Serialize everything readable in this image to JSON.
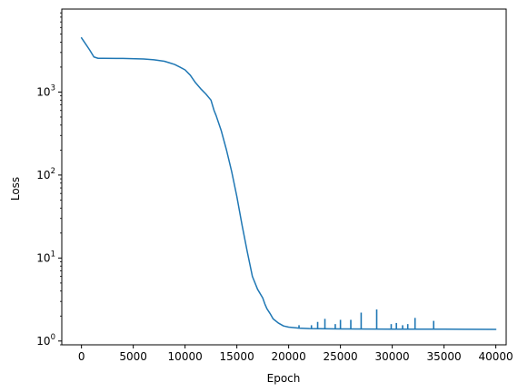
{
  "chart_data": {
    "type": "line",
    "title": "",
    "xlabel": "Epoch",
    "ylabel": "Loss",
    "yscale": "log",
    "xlim": [
      -1900,
      41000
    ],
    "ylim": [
      0.9,
      10000
    ],
    "grid": false,
    "legend": "none",
    "x_ticks": [
      0,
      5000,
      10000,
      15000,
      20000,
      25000,
      30000,
      35000,
      40000
    ],
    "x_tick_labels": [
      "0",
      "5000",
      "10000",
      "15000",
      "20000",
      "25000",
      "30000",
      "35000",
      "40000"
    ],
    "y_ticks": [
      1,
      10,
      100,
      1000
    ],
    "y_tick_labels": [
      {
        "base": "10",
        "exp": "0"
      },
      {
        "base": "10",
        "exp": "1"
      },
      {
        "base": "10",
        "exp": "2"
      },
      {
        "base": "10",
        "exp": "3"
      }
    ],
    "series": [
      {
        "color": "#1f77b4",
        "x": [
          0,
          400,
          800,
          1200,
          1600,
          2000,
          4000,
          6000,
          7000,
          8000,
          8500,
          9000,
          9500,
          10000,
          10500,
          11000,
          11500,
          12000,
          12500,
          12800,
          13000,
          13500,
          14000,
          14500,
          15000,
          15500,
          16000,
          16500,
          17000,
          17500,
          17700,
          17900,
          18200,
          18500,
          19000,
          19500,
          20000,
          21000,
          22000,
          25000,
          30000,
          35000,
          40000
        ],
        "y": [
          4500,
          3800,
          3200,
          2650,
          2550,
          2550,
          2540,
          2500,
          2450,
          2350,
          2250,
          2150,
          2000,
          1850,
          1600,
          1300,
          1100,
          950,
          800,
          600,
          520,
          340,
          200,
          110,
          55,
          25,
          12,
          6,
          4.2,
          3.3,
          2.8,
          2.45,
          2.15,
          1.85,
          1.65,
          1.52,
          1.47,
          1.43,
          1.41,
          1.4,
          1.39,
          1.39,
          1.38
        ]
      }
    ],
    "spikes": [
      {
        "x": 21000,
        "y": 1.55
      },
      {
        "x": 22200,
        "y": 1.55
      },
      {
        "x": 22800,
        "y": 1.7
      },
      {
        "x": 23500,
        "y": 1.85
      },
      {
        "x": 24500,
        "y": 1.6
      },
      {
        "x": 25000,
        "y": 1.8
      },
      {
        "x": 26000,
        "y": 1.8
      },
      {
        "x": 27000,
        "y": 2.2
      },
      {
        "x": 28500,
        "y": 2.4
      },
      {
        "x": 29900,
        "y": 1.6
      },
      {
        "x": 30400,
        "y": 1.65
      },
      {
        "x": 31000,
        "y": 1.55
      },
      {
        "x": 31500,
        "y": 1.6
      },
      {
        "x": 32200,
        "y": 1.9
      },
      {
        "x": 34000,
        "y": 1.75
      }
    ]
  }
}
